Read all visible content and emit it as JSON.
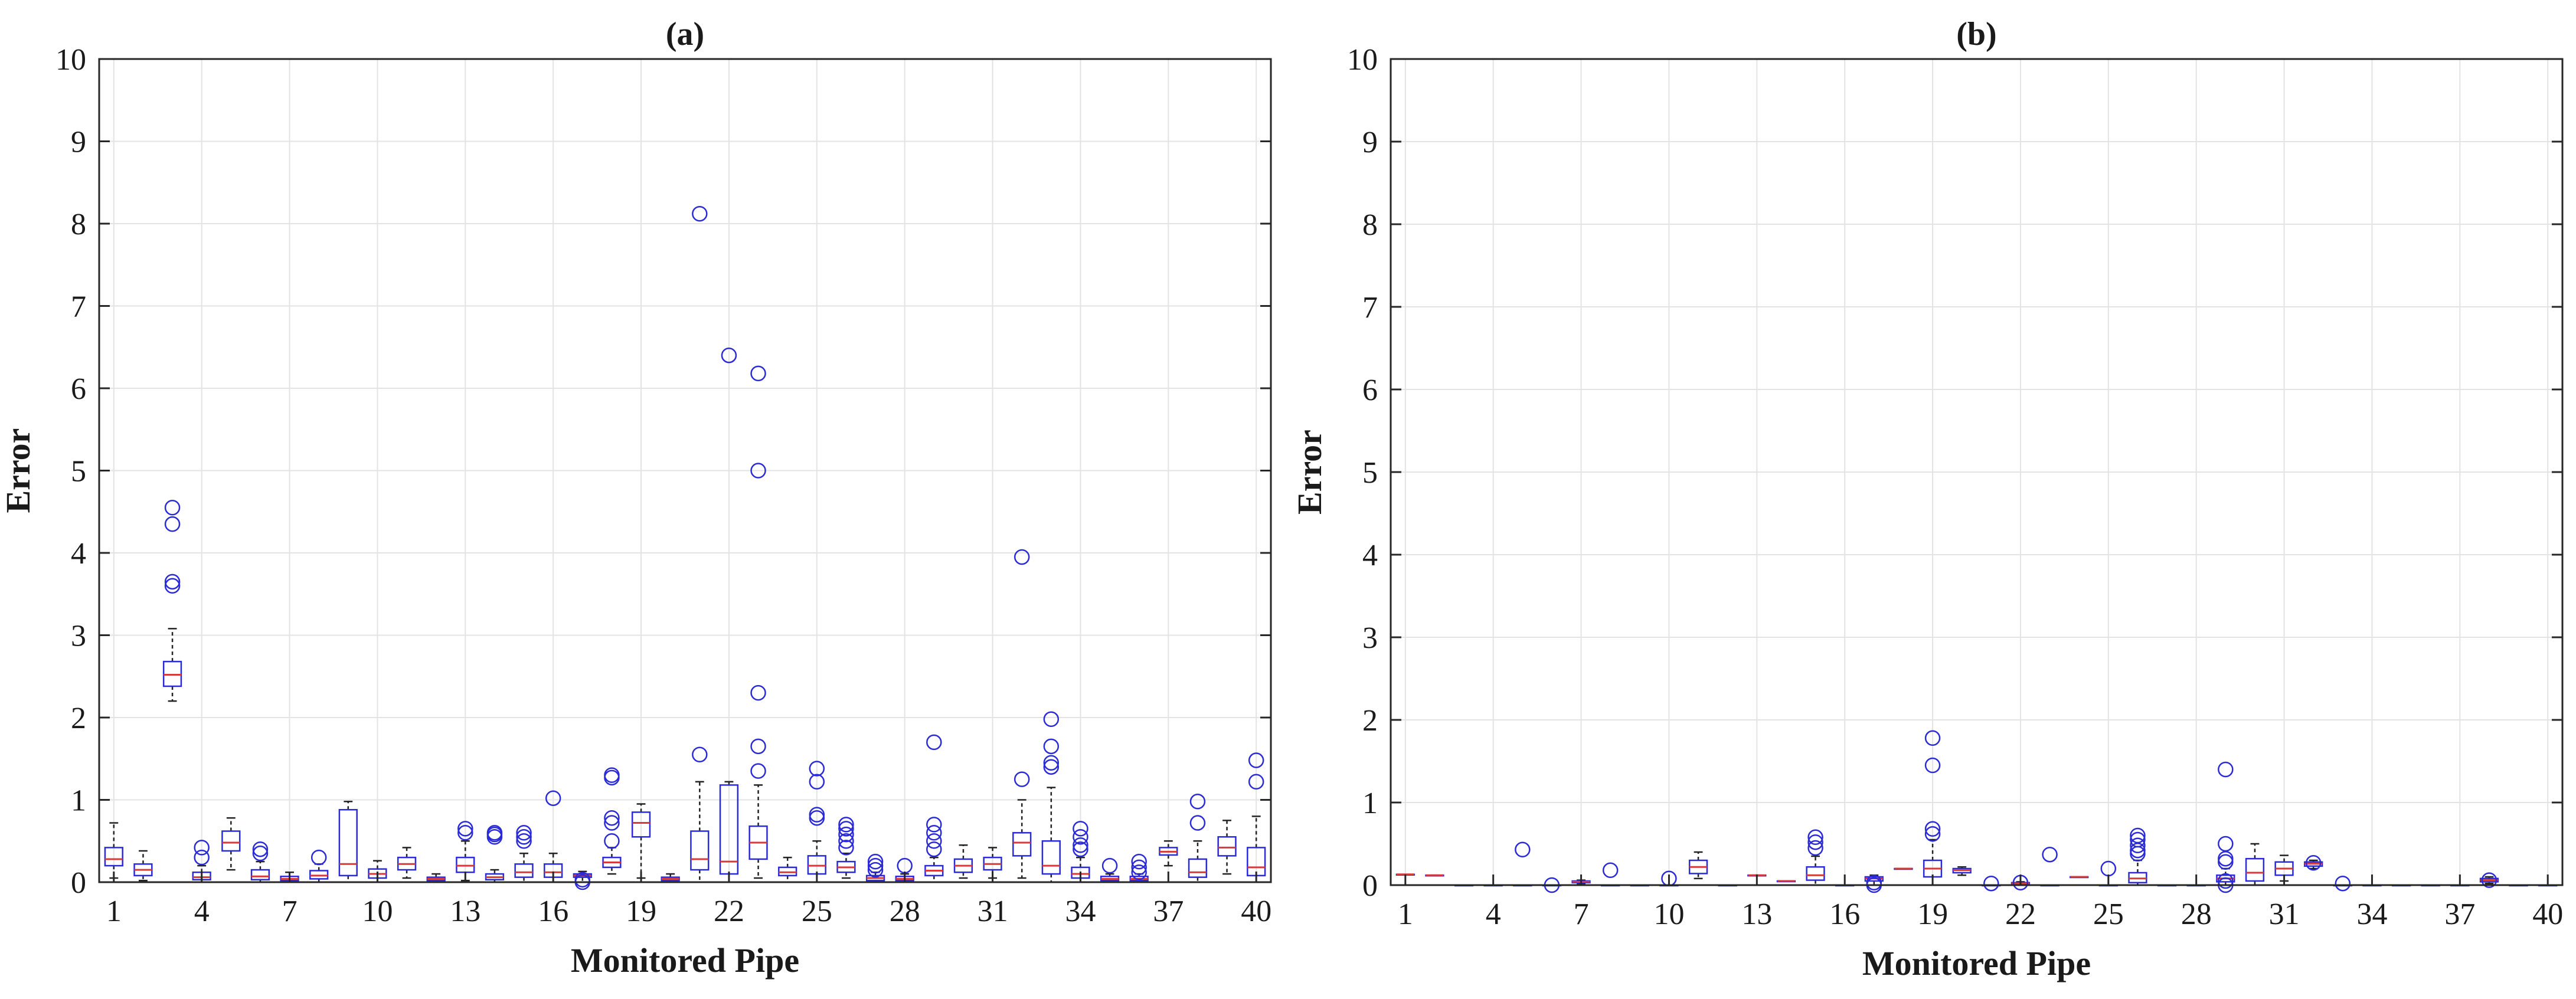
{
  "chart_data": [
    {
      "type": "box",
      "title": "(a)",
      "xlabel": "Monitored Pipe",
      "ylabel": "Error",
      "ylim": [
        0,
        10
      ],
      "xlim": [
        0.5,
        40.5
      ],
      "xticks": [
        1,
        4,
        7,
        10,
        13,
        16,
        19,
        22,
        25,
        28,
        31,
        34,
        37,
        40
      ],
      "yticks": [
        0,
        1,
        2,
        3,
        4,
        5,
        6,
        7,
        8,
        9,
        10
      ],
      "grid": true,
      "box_color": "#2b2bd6",
      "median_color": "#d63a3a",
      "boxes": [
        {
          "x": 1,
          "whisker_low": 0.05,
          "q1": 0.2,
          "median": 0.28,
          "q3": 0.42,
          "whisker_high": 0.72,
          "outliers": []
        },
        {
          "x": 2,
          "whisker_low": 0.02,
          "q1": 0.08,
          "median": 0.15,
          "q3": 0.22,
          "whisker_high": 0.38,
          "outliers": []
        },
        {
          "x": 3,
          "whisker_low": 2.2,
          "q1": 2.38,
          "median": 2.52,
          "q3": 2.68,
          "whisker_high": 3.08,
          "outliers": [
            3.6,
            3.65,
            4.35,
            4.55
          ]
        },
        {
          "x": 4,
          "whisker_low": 0.0,
          "q1": 0.03,
          "median": 0.06,
          "q3": 0.12,
          "whisker_high": 0.2,
          "outliers": [
            0.3,
            0.42
          ]
        },
        {
          "x": 5,
          "whisker_low": 0.15,
          "q1": 0.38,
          "median": 0.48,
          "q3": 0.62,
          "whisker_high": 0.78,
          "outliers": []
        },
        {
          "x": 6,
          "whisker_low": 0.0,
          "q1": 0.03,
          "median": 0.07,
          "q3": 0.15,
          "whisker_high": 0.25,
          "outliers": [
            0.35,
            0.4
          ]
        },
        {
          "x": 7,
          "whisker_low": 0.0,
          "q1": 0.02,
          "median": 0.04,
          "q3": 0.07,
          "whisker_high": 0.12,
          "outliers": []
        },
        {
          "x": 8,
          "whisker_low": 0.0,
          "q1": 0.04,
          "median": 0.08,
          "q3": 0.14,
          "whisker_high": 0.22,
          "outliers": [
            0.3
          ]
        },
        {
          "x": 9,
          "whisker_low": 0.0,
          "q1": 0.08,
          "median": 0.22,
          "q3": 0.88,
          "whisker_high": 0.98,
          "outliers": []
        },
        {
          "x": 10,
          "whisker_low": 0.0,
          "q1": 0.05,
          "median": 0.1,
          "q3": 0.16,
          "whisker_high": 0.26,
          "outliers": []
        },
        {
          "x": 11,
          "whisker_low": 0.05,
          "q1": 0.15,
          "median": 0.22,
          "q3": 0.3,
          "whisker_high": 0.42,
          "outliers": []
        },
        {
          "x": 12,
          "whisker_low": 0.0,
          "q1": 0.02,
          "median": 0.04,
          "q3": 0.06,
          "whisker_high": 0.1,
          "outliers": []
        },
        {
          "x": 13,
          "whisker_low": 0.02,
          "q1": 0.12,
          "median": 0.2,
          "q3": 0.3,
          "whisker_high": 0.5,
          "outliers": [
            0.6,
            0.65
          ]
        },
        {
          "x": 14,
          "whisker_low": 0.0,
          "q1": 0.03,
          "median": 0.06,
          "q3": 0.1,
          "whisker_high": 0.15,
          "outliers": [
            0.55,
            0.58,
            0.6
          ]
        },
        {
          "x": 15,
          "whisker_low": 0.0,
          "q1": 0.06,
          "median": 0.12,
          "q3": 0.22,
          "whisker_high": 0.35,
          "outliers": [
            0.5,
            0.55,
            0.6
          ]
        },
        {
          "x": 16,
          "whisker_low": 0.0,
          "q1": 0.06,
          "median": 0.12,
          "q3": 0.22,
          "whisker_high": 0.35,
          "outliers": [
            1.02
          ]
        },
        {
          "x": 17,
          "whisker_low": 0.0,
          "q1": 0.06,
          "median": 0.08,
          "q3": 0.1,
          "whisker_high": 0.13,
          "outliers": [
            0.0,
            0.03
          ]
        },
        {
          "x": 18,
          "whisker_low": 0.1,
          "q1": 0.18,
          "median": 0.24,
          "q3": 0.3,
          "whisker_high": 0.42,
          "outliers": [
            0.5,
            0.72,
            0.78,
            1.27,
            1.3
          ]
        },
        {
          "x": 19,
          "whisker_low": 0.05,
          "q1": 0.55,
          "median": 0.72,
          "q3": 0.85,
          "whisker_high": 0.95,
          "outliers": []
        },
        {
          "x": 20,
          "whisker_low": 0.0,
          "q1": 0.02,
          "median": 0.04,
          "q3": 0.06,
          "whisker_high": 0.1,
          "outliers": []
        },
        {
          "x": 21,
          "whisker_low": 0.0,
          "q1": 0.15,
          "median": 0.28,
          "q3": 0.62,
          "whisker_high": 1.22,
          "outliers": [
            1.55,
            8.12
          ]
        },
        {
          "x": 22,
          "whisker_low": 0.0,
          "q1": 0.1,
          "median": 0.25,
          "q3": 1.18,
          "whisker_high": 1.22,
          "outliers": [
            6.4
          ]
        },
        {
          "x": 23,
          "whisker_low": 0.05,
          "q1": 0.28,
          "median": 0.48,
          "q3": 0.68,
          "whisker_high": 1.18,
          "outliers": [
            1.35,
            1.65,
            2.3,
            5.0,
            6.18
          ]
        },
        {
          "x": 24,
          "whisker_low": 0.0,
          "q1": 0.08,
          "median": 0.12,
          "q3": 0.18,
          "whisker_high": 0.3,
          "outliers": []
        },
        {
          "x": 25,
          "whisker_low": 0.0,
          "q1": 0.1,
          "median": 0.2,
          "q3": 0.32,
          "whisker_high": 0.5,
          "outliers": [
            0.78,
            0.82,
            1.22,
            1.38
          ]
        },
        {
          "x": 26,
          "whisker_low": 0.05,
          "q1": 0.12,
          "median": 0.18,
          "q3": 0.25,
          "whisker_high": 0.35,
          "outliers": [
            0.42,
            0.5,
            0.58,
            0.65,
            0.7
          ]
        },
        {
          "x": 27,
          "whisker_low": 0.0,
          "q1": 0.02,
          "median": 0.05,
          "q3": 0.08,
          "whisker_high": 0.12,
          "outliers": [
            0.15,
            0.2,
            0.25
          ]
        },
        {
          "x": 28,
          "whisker_low": 0.0,
          "q1": 0.02,
          "median": 0.04,
          "q3": 0.07,
          "whisker_high": 0.1,
          "outliers": [
            0.2
          ]
        },
        {
          "x": 29,
          "whisker_low": 0.0,
          "q1": 0.08,
          "median": 0.14,
          "q3": 0.2,
          "whisker_high": 0.3,
          "outliers": [
            0.4,
            0.5,
            0.6,
            0.7,
            1.7
          ]
        },
        {
          "x": 30,
          "whisker_low": 0.05,
          "q1": 0.12,
          "median": 0.2,
          "q3": 0.28,
          "whisker_high": 0.45,
          "outliers": []
        },
        {
          "x": 31,
          "whisker_low": 0.05,
          "q1": 0.15,
          "median": 0.22,
          "q3": 0.3,
          "whisker_high": 0.42,
          "outliers": []
        },
        {
          "x": 32,
          "whisker_low": 0.05,
          "q1": 0.32,
          "median": 0.48,
          "q3": 0.6,
          "whisker_high": 1.0,
          "outliers": [
            1.25,
            3.95
          ]
        },
        {
          "x": 33,
          "whisker_low": 0.0,
          "q1": 0.1,
          "median": 0.2,
          "q3": 0.5,
          "whisker_high": 1.15,
          "outliers": [
            1.4,
            1.45,
            1.65,
            1.98
          ]
        },
        {
          "x": 34,
          "whisker_low": 0.0,
          "q1": 0.05,
          "median": 0.1,
          "q3": 0.18,
          "whisker_high": 0.3,
          "outliers": [
            0.4,
            0.45,
            0.55,
            0.65
          ]
        },
        {
          "x": 35,
          "whisker_low": 0.0,
          "q1": 0.02,
          "median": 0.04,
          "q3": 0.07,
          "whisker_high": 0.1,
          "outliers": [
            0.2
          ]
        },
        {
          "x": 36,
          "whisker_low": 0.0,
          "q1": 0.02,
          "median": 0.04,
          "q3": 0.07,
          "whisker_high": 0.1,
          "outliers": [
            0.12,
            0.18,
            0.25
          ]
        },
        {
          "x": 37,
          "whisker_low": 0.2,
          "q1": 0.33,
          "median": 0.37,
          "q3": 0.42,
          "whisker_high": 0.5,
          "outliers": []
        },
        {
          "x": 38,
          "whisker_low": 0.0,
          "q1": 0.06,
          "median": 0.12,
          "q3": 0.28,
          "whisker_high": 0.5,
          "outliers": [
            0.72,
            0.98
          ]
        },
        {
          "x": 39,
          "whisker_low": 0.1,
          "q1": 0.32,
          "median": 0.42,
          "q3": 0.55,
          "whisker_high": 0.75,
          "outliers": []
        },
        {
          "x": 40,
          "whisker_low": 0.0,
          "q1": 0.08,
          "median": 0.18,
          "q3": 0.42,
          "whisker_high": 0.8,
          "outliers": [
            1.22,
            1.48
          ]
        }
      ]
    },
    {
      "type": "box",
      "title": "(b)",
      "xlabel": "Monitored Pipe",
      "ylabel": "Error",
      "ylim": [
        0,
        10
      ],
      "xlim": [
        0.5,
        40.5
      ],
      "xticks": [
        1,
        4,
        7,
        10,
        13,
        16,
        19,
        22,
        25,
        28,
        31,
        34,
        37,
        40
      ],
      "yticks": [
        0,
        1,
        2,
        3,
        4,
        5,
        6,
        7,
        8,
        9,
        10
      ],
      "grid": true,
      "box_color": "#2b2bd6",
      "median_color": "#d63a3a",
      "boxes": [
        {
          "x": 1,
          "whisker_low": 0.13,
          "q1": 0.13,
          "median": 0.13,
          "q3": 0.13,
          "whisker_high": 0.13,
          "outliers": []
        },
        {
          "x": 2,
          "whisker_low": 0.12,
          "q1": 0.12,
          "median": 0.12,
          "q3": 0.12,
          "whisker_high": 0.12,
          "outliers": []
        },
        {
          "x": 3,
          "whisker_low": 0.0,
          "q1": 0.0,
          "median": 0.0,
          "q3": 0.0,
          "whisker_high": 0.0,
          "outliers": []
        },
        {
          "x": 4,
          "whisker_low": 0.0,
          "q1": 0.0,
          "median": 0.0,
          "q3": 0.0,
          "whisker_high": 0.0,
          "outliers": []
        },
        {
          "x": 5,
          "whisker_low": 0.0,
          "q1": 0.0,
          "median": 0.0,
          "q3": 0.0,
          "whisker_high": 0.0,
          "outliers": [
            0.43
          ]
        },
        {
          "x": 6,
          "whisker_low": 0.0,
          "q1": 0.0,
          "median": 0.0,
          "q3": 0.0,
          "whisker_high": 0.0,
          "outliers": [
            0.0
          ]
        },
        {
          "x": 7,
          "whisker_low": 0.02,
          "q1": 0.03,
          "median": 0.04,
          "q3": 0.05,
          "whisker_high": 0.06,
          "outliers": []
        },
        {
          "x": 8,
          "whisker_low": 0.0,
          "q1": 0.0,
          "median": 0.0,
          "q3": 0.0,
          "whisker_high": 0.0,
          "outliers": [
            0.18
          ]
        },
        {
          "x": 9,
          "whisker_low": 0.0,
          "q1": 0.0,
          "median": 0.0,
          "q3": 0.0,
          "whisker_high": 0.0,
          "outliers": []
        },
        {
          "x": 10,
          "whisker_low": 0.0,
          "q1": 0.0,
          "median": 0.0,
          "q3": 0.0,
          "whisker_high": 0.0,
          "outliers": [
            0.08
          ]
        },
        {
          "x": 11,
          "whisker_low": 0.08,
          "q1": 0.14,
          "median": 0.22,
          "q3": 0.3,
          "whisker_high": 0.4,
          "outliers": []
        },
        {
          "x": 12,
          "whisker_low": 0.0,
          "q1": 0.0,
          "median": 0.0,
          "q3": 0.0,
          "whisker_high": 0.0,
          "outliers": []
        },
        {
          "x": 13,
          "whisker_low": 0.12,
          "q1": 0.12,
          "median": 0.12,
          "q3": 0.12,
          "whisker_high": 0.12,
          "outliers": []
        },
        {
          "x": 14,
          "whisker_low": 0.05,
          "q1": 0.05,
          "median": 0.05,
          "q3": 0.05,
          "whisker_high": 0.05,
          "outliers": []
        },
        {
          "x": 15,
          "whisker_low": 0.0,
          "q1": 0.06,
          "median": 0.12,
          "q3": 0.22,
          "whisker_high": 0.35,
          "outliers": [
            0.45,
            0.52,
            0.58
          ]
        },
        {
          "x": 16,
          "whisker_low": 0.0,
          "q1": 0.0,
          "median": 0.0,
          "q3": 0.0,
          "whisker_high": 0.0,
          "outliers": []
        },
        {
          "x": 17,
          "whisker_low": 0.0,
          "q1": 0.05,
          "median": 0.08,
          "q3": 0.1,
          "whisker_high": 0.12,
          "outliers": [
            0.0,
            0.03
          ]
        },
        {
          "x": 18,
          "whisker_low": 0.2,
          "q1": 0.2,
          "median": 0.2,
          "q3": 0.2,
          "whisker_high": 0.2,
          "outliers": []
        },
        {
          "x": 19,
          "whisker_low": 0.0,
          "q1": 0.1,
          "median": 0.2,
          "q3": 0.3,
          "whisker_high": 0.55,
          "outliers": [
            0.62,
            0.68,
            1.45,
            1.78
          ]
        },
        {
          "x": 20,
          "whisker_low": 0.12,
          "q1": 0.15,
          "median": 0.18,
          "q3": 0.2,
          "whisker_high": 0.22,
          "outliers": []
        },
        {
          "x": 21,
          "whisker_low": 0.0,
          "q1": 0.0,
          "median": 0.0,
          "q3": 0.0,
          "whisker_high": 0.0,
          "outliers": [
            0.02
          ]
        },
        {
          "x": 22,
          "whisker_low": 0.0,
          "q1": 0.0,
          "median": 0.02,
          "q3": 0.03,
          "whisker_high": 0.04,
          "outliers": [
            0.03
          ]
        },
        {
          "x": 23,
          "whisker_low": 0.0,
          "q1": 0.0,
          "median": 0.0,
          "q3": 0.0,
          "whisker_high": 0.0,
          "outliers": [
            0.37
          ]
        },
        {
          "x": 24,
          "whisker_low": 0.1,
          "q1": 0.1,
          "median": 0.1,
          "q3": 0.1,
          "whisker_high": 0.1,
          "outliers": []
        },
        {
          "x": 25,
          "whisker_low": 0.0,
          "q1": 0.0,
          "median": 0.0,
          "q3": 0.0,
          "whisker_high": 0.0,
          "outliers": [
            0.2
          ]
        },
        {
          "x": 26,
          "whisker_low": 0.0,
          "q1": 0.03,
          "median": 0.08,
          "q3": 0.15,
          "whisker_high": 0.3,
          "outliers": [
            0.38,
            0.42,
            0.48,
            0.55,
            0.6
          ]
        },
        {
          "x": 27,
          "whisker_low": 0.0,
          "q1": 0.0,
          "median": 0.0,
          "q3": 0.0,
          "whisker_high": 0.0,
          "outliers": []
        },
        {
          "x": 28,
          "whisker_low": 0.0,
          "q1": 0.0,
          "median": 0.0,
          "q3": 0.0,
          "whisker_high": 0.0,
          "outliers": []
        },
        {
          "x": 29,
          "whisker_low": 0.0,
          "q1": 0.04,
          "median": 0.08,
          "q3": 0.12,
          "whisker_high": 0.2,
          "outliers": [
            0.0,
            0.05,
            0.28,
            0.32,
            0.5,
            1.4
          ]
        },
        {
          "x": 30,
          "whisker_low": 0.0,
          "q1": 0.05,
          "median": 0.15,
          "q3": 0.32,
          "whisker_high": 0.5,
          "outliers": []
        },
        {
          "x": 31,
          "whisker_low": 0.05,
          "q1": 0.12,
          "median": 0.2,
          "q3": 0.28,
          "whisker_high": 0.36,
          "outliers": []
        },
        {
          "x": 32,
          "whisker_low": 0.2,
          "q1": 0.23,
          "median": 0.26,
          "q3": 0.28,
          "whisker_high": 0.3,
          "outliers": [
            0.27
          ]
        },
        {
          "x": 33,
          "whisker_low": 0.0,
          "q1": 0.0,
          "median": 0.0,
          "q3": 0.0,
          "whisker_high": 0.0,
          "outliers": [
            0.02
          ]
        },
        {
          "x": 34,
          "whisker_low": 0.0,
          "q1": 0.0,
          "median": 0.0,
          "q3": 0.0,
          "whisker_high": 0.0,
          "outliers": []
        },
        {
          "x": 35,
          "whisker_low": 0.0,
          "q1": 0.0,
          "median": 0.0,
          "q3": 0.0,
          "whisker_high": 0.0,
          "outliers": []
        },
        {
          "x": 36,
          "whisker_low": 0.0,
          "q1": 0.0,
          "median": 0.0,
          "q3": 0.0,
          "whisker_high": 0.0,
          "outliers": []
        },
        {
          "x": 37,
          "whisker_low": 0.0,
          "q1": 0.0,
          "median": 0.0,
          "q3": 0.0,
          "whisker_high": 0.0,
          "outliers": []
        },
        {
          "x": 38,
          "whisker_low": 0.02,
          "q1": 0.04,
          "median": 0.06,
          "q3": 0.08,
          "whisker_high": 0.1,
          "outliers": [
            0.06
          ]
        },
        {
          "x": 39,
          "whisker_low": 0.0,
          "q1": 0.0,
          "median": 0.0,
          "q3": 0.0,
          "whisker_high": 0.0,
          "outliers": []
        },
        {
          "x": 40,
          "whisker_low": 0.0,
          "q1": 0.0,
          "median": 0.0,
          "q3": 0.0,
          "whisker_high": 0.0,
          "outliers": []
        }
      ]
    }
  ]
}
